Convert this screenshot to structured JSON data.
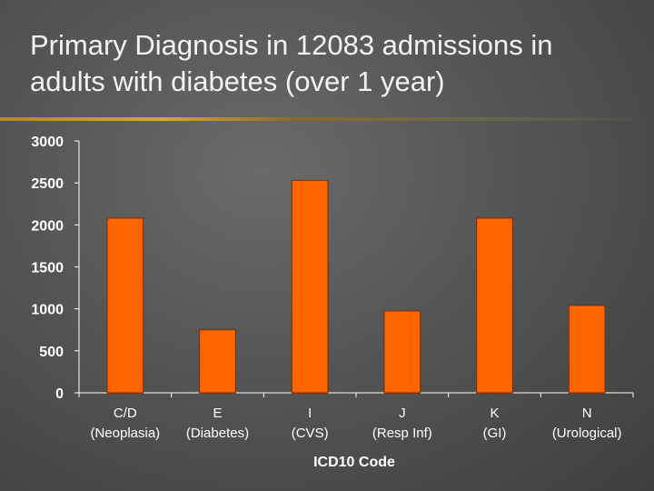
{
  "slide": {
    "title_line1": "Primary Diagnosis in 12083 admissions in",
    "title_line2": "adults with diabetes (over 1 year)"
  },
  "colors": {
    "bar": "#ff6600",
    "bar_stroke": "#7a2e00",
    "axis": "#ffffff"
  },
  "chart_data": {
    "type": "bar",
    "categories": [
      [
        "C/D",
        "(Neoplasia)"
      ],
      [
        "E",
        "(Diabetes)"
      ],
      [
        "I",
        "(CVS)"
      ],
      [
        "J",
        "(Resp Inf)"
      ],
      [
        "K",
        "(GI)"
      ],
      [
        "N",
        "(Urological)"
      ]
    ],
    "values": [
      2080,
      750,
      2530,
      975,
      2080,
      1040
    ],
    "xlabel": "ICD10 Code",
    "ylabel": "",
    "ylim": [
      0,
      3000
    ],
    "yticks": [
      0,
      500,
      1000,
      1500,
      2000,
      2500,
      3000
    ],
    "grid": false,
    "legend": "none"
  }
}
